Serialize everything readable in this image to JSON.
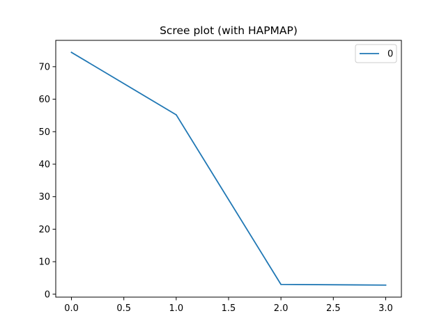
{
  "chart_data": {
    "type": "line",
    "title": "Scree plot (with HAPMAP)",
    "xlabel": "",
    "ylabel": "",
    "x": [
      0,
      1,
      2,
      3
    ],
    "series": [
      {
        "name": "0",
        "values": [
          74.4,
          55.2,
          3.0,
          2.8
        ],
        "color": "#1f77b4"
      }
    ],
    "xlim": [
      -0.15,
      3.15
    ],
    "ylim": [
      -0.9,
      78.1
    ],
    "xticks": [
      "0.0",
      "0.5",
      "1.0",
      "1.5",
      "2.0",
      "2.5",
      "3.0"
    ],
    "yticks": [
      "0",
      "10",
      "20",
      "30",
      "40",
      "50",
      "60",
      "70"
    ],
    "grid": false,
    "legend_position": "top-right"
  }
}
